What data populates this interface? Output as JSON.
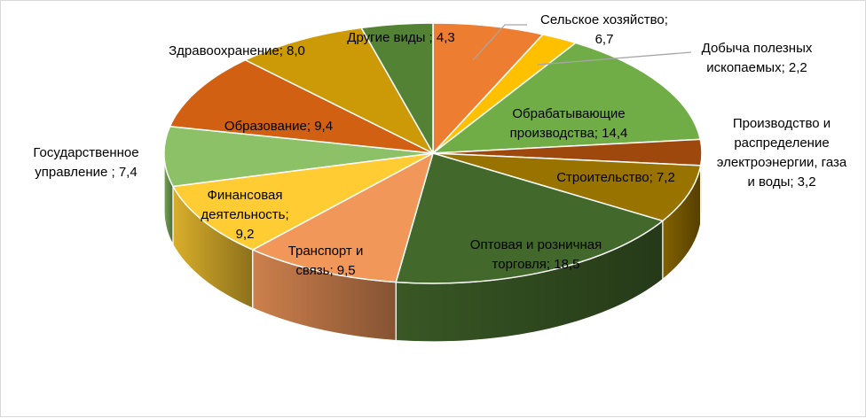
{
  "chart_data": {
    "type": "pie",
    "style": "3d",
    "title": "",
    "slices": [
      {
        "name": "Сельское  хозяйство;",
        "value": "6,7",
        "label_lines": [
          "Сельское  хозяйство;",
          "6,7"
        ],
        "color": "#ED7D31"
      },
      {
        "name": "Добыча полезных ископаемых;",
        "value": "2,2",
        "label_lines": [
          "Добыча полезных",
          "ископаемых;  2,2"
        ],
        "color": "#FFC000"
      },
      {
        "name": "Обрабатывающие производства;",
        "value": "14,4",
        "label_lines": [
          "Обрабатывающие",
          "производства;  14,4"
        ],
        "color": "#70AD47"
      },
      {
        "name": "Производство и распределение электроэнергии, газа и воды;",
        "value": "3,2",
        "label_lines": [
          "Производство и",
          "распределение",
          "электроэнергии, газа",
          "и воды;  3,2"
        ],
        "color": "#9E480E"
      },
      {
        "name": "Строительство;",
        "value": "7,2",
        "label_lines": [
          "Строительство;  7,2"
        ],
        "color": "#997300"
      },
      {
        "name": "Оптовая и розничная торговля;",
        "value": "18,5",
        "label_lines": [
          "Оптовая и розничная",
          "торговля;  18,5"
        ],
        "color": "#43682B"
      },
      {
        "name": "Транспорт и связь;",
        "value": "9,5",
        "label_lines": [
          "Транспорт и",
          "связь;  9,5"
        ],
        "color": "#F1975A"
      },
      {
        "name": "Финансовая деятельность;",
        "value": "9,2",
        "label_lines": [
          "Финансовая",
          "деятельность;",
          "9,2"
        ],
        "color": "#FFCD33"
      },
      {
        "name": "Государственное управление ;",
        "value": "7,4",
        "label_lines": [
          "Государственное",
          "управление ;  7,4"
        ],
        "color": "#8CC168"
      },
      {
        "name": "Образование;",
        "value": "9,4",
        "label_lines": [
          "Образование;  9,4"
        ],
        "color": "#D26012"
      },
      {
        "name": "Здравоохранение;",
        "value": "8,0",
        "label_lines": [
          "Здравоохранение;  8,0"
        ],
        "color": "#CC9A06"
      },
      {
        "name": "Другие виды ;",
        "value": "4,3",
        "label_lines": [
          "Другие виды ;  4,3"
        ],
        "color": "#548235"
      }
    ],
    "legend": "none",
    "data_labels": "category name and value"
  }
}
